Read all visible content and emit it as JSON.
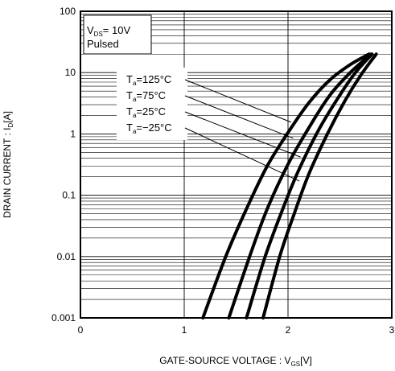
{
  "chart_data": {
    "type": "line",
    "title": "",
    "xlabel": {
      "main": "GATE-SOURCE VOLTAGE : V",
      "sub": "GS",
      "unit": "[V]"
    },
    "ylabel": {
      "main": "DRAIN CURRENT : I",
      "sub": "D",
      "unit": "[A]"
    },
    "xlim": [
      0,
      3
    ],
    "ylim": [
      0.001,
      100
    ],
    "y_scale": "log",
    "grid": true,
    "x_ticks": [
      {
        "value": 0,
        "label": "0"
      },
      {
        "value": 1,
        "label": "1"
      },
      {
        "value": 2,
        "label": "2"
      },
      {
        "value": 3,
        "label": "3"
      }
    ],
    "y_ticks": [
      {
        "value": 0.001,
        "label": "0.001"
      },
      {
        "value": 0.01,
        "label": "0.01"
      },
      {
        "value": 0.1,
        "label": "0.1"
      },
      {
        "value": 1,
        "label": "1"
      },
      {
        "value": 10,
        "label": "10"
      },
      {
        "value": 100,
        "label": "100"
      }
    ],
    "condition_box": {
      "line1_main": "V",
      "line1_sub": "DS",
      "line1_rest": "= 10V",
      "line2": "Pulsed"
    },
    "series": [
      {
        "name": "T_a=125°C",
        "label_main": "T",
        "label_sub": "a",
        "label_rest": "=125°C",
        "points": [
          [
            1.18,
            0.001
          ],
          [
            1.4,
            0.01
          ],
          [
            1.6,
            0.06
          ],
          [
            1.8,
            0.3
          ],
          [
            2.0,
            1.05
          ],
          [
            2.2,
            3.2
          ],
          [
            2.4,
            7.5
          ],
          [
            2.6,
            13.5
          ],
          [
            2.78,
            20
          ]
        ]
      },
      {
        "name": "T_a=75°C",
        "label_main": "T",
        "label_sub": "a",
        "label_rest": "=75°C",
        "points": [
          [
            1.43,
            0.001
          ],
          [
            1.63,
            0.01
          ],
          [
            1.8,
            0.06
          ],
          [
            2.0,
            0.32
          ],
          [
            2.2,
            1.25
          ],
          [
            2.4,
            4.2
          ],
          [
            2.6,
            10
          ],
          [
            2.8,
            20
          ]
        ]
      },
      {
        "name": "T_a=25°C",
        "label_main": "T",
        "label_sub": "a",
        "label_rest": "=25°C",
        "points": [
          [
            1.6,
            0.001
          ],
          [
            1.78,
            0.01
          ],
          [
            1.95,
            0.06
          ],
          [
            2.1,
            0.25
          ],
          [
            2.3,
            1.2
          ],
          [
            2.5,
            4.3
          ],
          [
            2.65,
            10
          ],
          [
            2.81,
            20
          ]
        ]
      },
      {
        "name": "T_a=-25°C",
        "label_main": "T",
        "label_sub": "a",
        "label_rest": "=−25°C",
        "points": [
          [
            1.76,
            0.001
          ],
          [
            1.92,
            0.01
          ],
          [
            2.06,
            0.05
          ],
          [
            2.2,
            0.22
          ],
          [
            2.38,
            1.0
          ],
          [
            2.55,
            3.5
          ],
          [
            2.7,
            9
          ],
          [
            2.85,
            20
          ]
        ]
      }
    ],
    "callout_targets": [
      [
        2.03,
        1.55
      ],
      [
        2.05,
        0.85
      ],
      [
        2.12,
        0.42
      ],
      [
        2.11,
        0.17
      ]
    ]
  }
}
